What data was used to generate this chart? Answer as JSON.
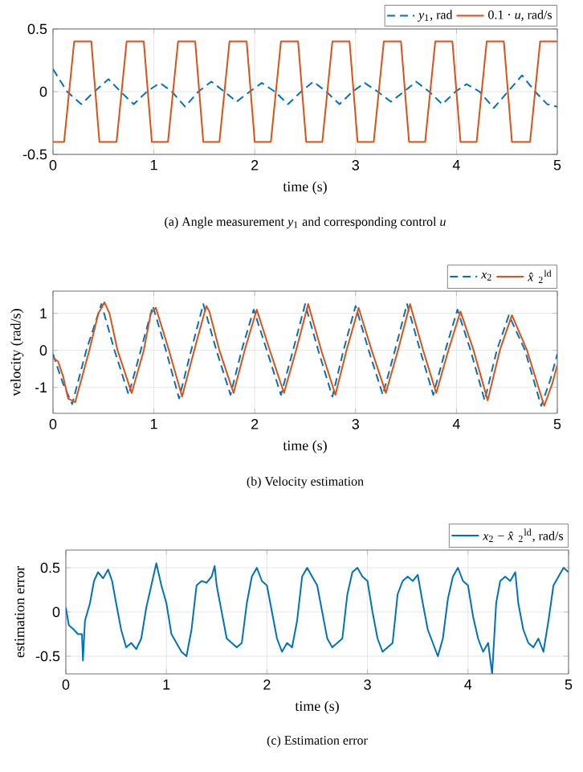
{
  "chart_data": [
    {
      "type": "line",
      "title": "(a) Angle measurement *y*$_{1}$ and corresponding control *u*",
      "xlabel": "time (s)",
      "xlim": [
        0,
        5
      ],
      "ylim": [
        -0.5,
        0.5
      ],
      "xticks": [
        0,
        1,
        2,
        3,
        4,
        5
      ],
      "yticks": [
        -0.5,
        0,
        0.5
      ],
      "grid": true,
      "legend": "top right",
      "series": [
        {
          "name": "*y*$_{1}$, rad",
          "color": "#0072bd",
          "line_style": "dashed",
          "x": [
            0,
            0.14,
            0.28,
            0.41,
            0.55,
            0.67,
            0.8,
            0.93,
            1.06,
            1.18,
            1.31,
            1.44,
            1.57,
            1.7,
            1.82,
            1.95,
            2.07,
            2.2,
            2.33,
            2.46,
            2.58,
            2.71,
            2.84,
            2.97,
            3.09,
            3.22,
            3.35,
            3.48,
            3.6,
            3.73,
            3.86,
            3.99,
            4.1,
            4.23,
            4.37,
            4.51,
            4.65,
            4.78,
            4.9,
            5
          ],
          "values": [
            0.18,
            0,
            -0.1,
            0,
            0.1,
            0,
            -0.1,
            0,
            0.07,
            0,
            -0.12,
            0,
            0.08,
            0,
            -0.08,
            0,
            0.07,
            0,
            -0.1,
            0,
            0.08,
            0,
            -0.1,
            0,
            0.07,
            0,
            -0.08,
            0,
            0.08,
            0,
            -0.1,
            0,
            0.06,
            0,
            -0.13,
            0,
            0.13,
            0,
            -0.1,
            -0.12
          ]
        },
        {
          "name": "0.1 · *u*, rad/s",
          "color": "#d95319",
          "line_style": "solid",
          "x": [
            0,
            0.11,
            0.21,
            0.38,
            0.46,
            0.63,
            0.73,
            0.9,
            0.98,
            1.14,
            1.24,
            1.41,
            1.49,
            1.65,
            1.75,
            1.92,
            2.0,
            2.16,
            2.26,
            2.43,
            2.51,
            2.67,
            2.77,
            2.94,
            3.02,
            3.18,
            3.28,
            3.45,
            3.53,
            3.69,
            3.79,
            3.96,
            4.04,
            4.2,
            4.3,
            4.47,
            4.55,
            4.73,
            4.83,
            5
          ],
          "values": [
            -0.4,
            -0.4,
            0.4,
            0.4,
            -0.4,
            -0.4,
            0.4,
            0.4,
            -0.4,
            -0.4,
            0.4,
            0.4,
            -0.4,
            -0.4,
            0.4,
            0.4,
            -0.4,
            -0.4,
            0.4,
            0.4,
            -0.4,
            -0.4,
            0.4,
            0.4,
            -0.4,
            -0.4,
            0.4,
            0.4,
            -0.4,
            -0.4,
            0.4,
            0.4,
            -0.4,
            -0.4,
            0.4,
            0.4,
            -0.4,
            -0.4,
            0.4,
            0.4
          ]
        }
      ]
    },
    {
      "type": "line",
      "title": "(b) Velocity estimation",
      "xlabel": "time (s)",
      "ylabel": "velocity (rad/s)",
      "xlim": [
        0,
        5
      ],
      "ylim": [
        -1.7,
        1.6
      ],
      "xticks": [
        0,
        1,
        2,
        3,
        4,
        5
      ],
      "yticks": [
        -1,
        0,
        1
      ],
      "grid": true,
      "legend": "top right",
      "series": [
        {
          "name": "*x*$_{2}$",
          "color": "#0072bd",
          "line_style": "dashed",
          "x": [
            0,
            0.1,
            0.19,
            0.33,
            0.48,
            0.61,
            0.75,
            0.87,
            0.99,
            1.12,
            1.25,
            1.37,
            1.49,
            1.62,
            1.76,
            1.87,
            1.99,
            2.12,
            2.26,
            2.38,
            2.5,
            2.63,
            2.77,
            2.88,
            3.0,
            3.13,
            3.27,
            3.39,
            3.51,
            3.64,
            3.77,
            3.89,
            4.01,
            4.14,
            4.28,
            4.4,
            4.52,
            4.68,
            4.84,
            4.93,
            5
          ],
          "values": [
            -0.1,
            -0.9,
            -1.45,
            0,
            1.25,
            0,
            -1.2,
            0,
            1.2,
            0,
            -1.3,
            0,
            1.25,
            0,
            -1.2,
            0,
            1.1,
            0,
            -1.2,
            0,
            1.25,
            0,
            -1.25,
            0,
            1.2,
            0,
            -1.2,
            0,
            1.25,
            0,
            -1.2,
            0,
            1.1,
            0,
            -1.35,
            0,
            0.95,
            0,
            -1.5,
            -0.8,
            -0.1
          ]
        },
        {
          "name": "*x̂*$_{2}$$^{ld}$",
          "color": "#d95319",
          "line_style": "solid",
          "x": [
            0,
            0.05,
            0.1,
            0.15,
            0.22,
            0.36,
            0.45,
            0.51,
            0.56,
            0.64,
            0.78,
            0.9,
            0.97,
            1.02,
            1.15,
            1.28,
            1.4,
            1.52,
            1.55,
            1.65,
            1.79,
            1.9,
            2.02,
            2.15,
            2.29,
            2.41,
            2.53,
            2.66,
            2.8,
            2.91,
            3.03,
            3.16,
            3.3,
            3.42,
            3.54,
            3.67,
            3.8,
            3.92,
            4.04,
            4.17,
            4.31,
            4.43,
            4.55,
            4.7,
            4.87,
            4.95,
            5
          ],
          "values": [
            -0.2,
            -0.3,
            -0.7,
            -1.3,
            -1.4,
            0,
            1.0,
            1.3,
            1.0,
            0,
            -1.15,
            0,
            1.0,
            1.15,
            0,
            -1.25,
            0,
            1.2,
            1.05,
            0,
            -1.15,
            0,
            1.1,
            0,
            -1.15,
            0,
            1.25,
            0,
            -1.2,
            0,
            1.15,
            0,
            -1.15,
            0,
            1.25,
            0,
            -1.15,
            0,
            1.05,
            0,
            -1.35,
            0,
            0.95,
            0,
            -1.5,
            -0.9,
            -0.4
          ]
        }
      ]
    },
    {
      "type": "line",
      "title": "(c) Estimation error",
      "xlabel": "time (s)",
      "ylabel": "estimation error",
      "xlim": [
        0,
        5
      ],
      "ylim": [
        -0.7,
        0.7
      ],
      "xticks": [
        0,
        1,
        2,
        3,
        4,
        5
      ],
      "yticks": [
        -0.5,
        0,
        0.5
      ],
      "grid": true,
      "legend": "top right",
      "series": [
        {
          "name": "*x*$_{2}$ − *x̂*$_{2}$$^{ld}$, rad/s",
          "color": "#0072bd",
          "line_style": "solid",
          "x": [
            0,
            0.03,
            0.08,
            0.12,
            0.16,
            0.17,
            0.19,
            0.24,
            0.28,
            0.32,
            0.37,
            0.42,
            0.46,
            0.5,
            0.55,
            0.6,
            0.65,
            0.7,
            0.75,
            0.8,
            0.85,
            0.9,
            0.95,
            1.0,
            1.05,
            1.1,
            1.15,
            1.2,
            1.25,
            1.3,
            1.35,
            1.4,
            1.45,
            1.48,
            1.5,
            1.55,
            1.6,
            1.65,
            1.7,
            1.75,
            1.8,
            1.85,
            1.9,
            1.95,
            2.0,
            2.05,
            2.1,
            2.15,
            2.2,
            2.25,
            2.3,
            2.35,
            2.4,
            2.45,
            2.5,
            2.55,
            2.6,
            2.65,
            2.7,
            2.75,
            2.8,
            2.85,
            2.9,
            2.95,
            3.0,
            3.05,
            3.1,
            3.15,
            3.2,
            3.25,
            3.3,
            3.35,
            3.4,
            3.45,
            3.5,
            3.55,
            3.6,
            3.65,
            3.7,
            3.75,
            3.8,
            3.85,
            3.9,
            3.95,
            4.0,
            4.05,
            4.1,
            4.15,
            4.2,
            4.24,
            4.28,
            4.32,
            4.37,
            4.42,
            4.47,
            4.5,
            4.55,
            4.6,
            4.65,
            4.7,
            4.75,
            4.8,
            4.85,
            4.9,
            4.95,
            5.0
          ],
          "values": [
            0.05,
            -0.15,
            -0.2,
            -0.25,
            -0.25,
            -0.55,
            -0.1,
            0.1,
            0.35,
            0.45,
            0.38,
            0.48,
            0.35,
            0.1,
            -0.2,
            -0.4,
            -0.35,
            -0.42,
            -0.3,
            0.05,
            0.3,
            0.55,
            0.3,
            0.1,
            -0.25,
            -0.35,
            -0.45,
            -0.5,
            -0.2,
            0.3,
            0.35,
            0.33,
            0.4,
            0.52,
            0.3,
            0.0,
            -0.3,
            -0.35,
            -0.4,
            -0.35,
            0.1,
            0.4,
            0.5,
            0.35,
            0.3,
            0,
            -0.3,
            -0.45,
            -0.35,
            -0.4,
            -0.1,
            0.4,
            0.5,
            0.4,
            0.3,
            0.0,
            -0.3,
            -0.4,
            -0.35,
            -0.3,
            0.2,
            0.45,
            0.5,
            0.4,
            0.35,
            0.0,
            -0.3,
            -0.45,
            -0.4,
            -0.35,
            0.2,
            0.35,
            0.4,
            0.35,
            0.42,
            0.1,
            -0.2,
            -0.35,
            -0.5,
            -0.3,
            0.15,
            0.4,
            0.5,
            0.35,
            0.3,
            -0.05,
            -0.3,
            -0.45,
            -0.35,
            -0.7,
            0.1,
            0.35,
            0.4,
            0.35,
            0.45,
            0.1,
            -0.2,
            -0.35,
            -0.4,
            -0.3,
            -0.45,
            -0.1,
            0.3,
            0.4,
            0.5,
            0.45
          ]
        }
      ]
    }
  ]
}
